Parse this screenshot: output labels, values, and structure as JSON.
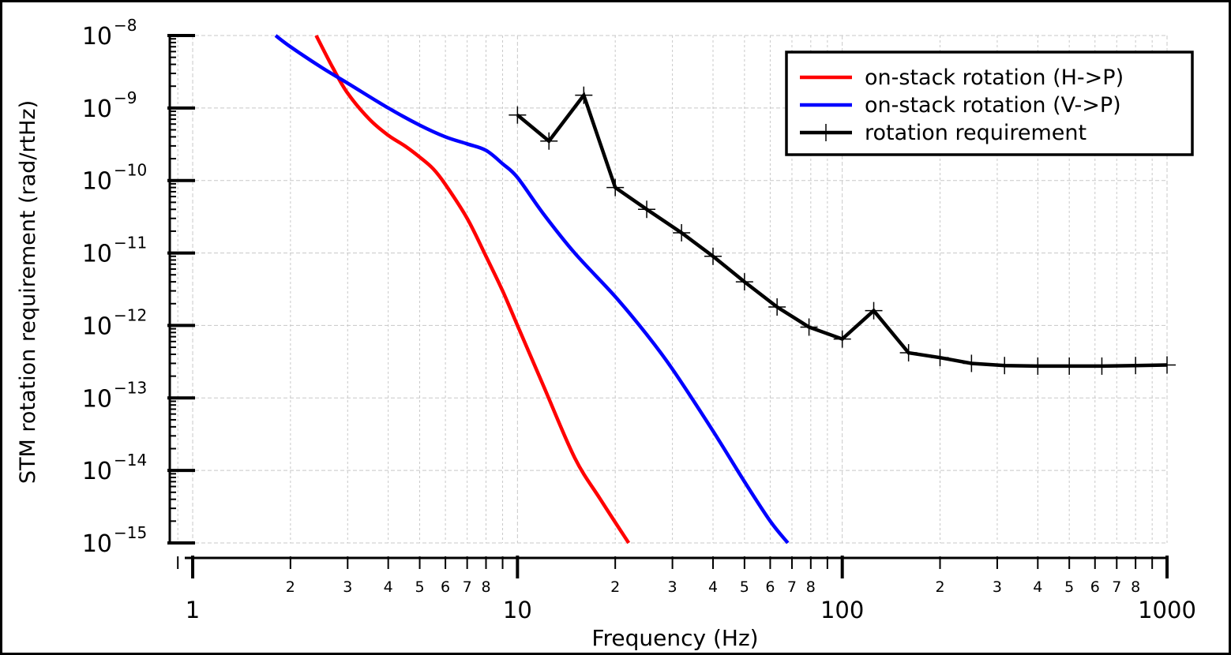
{
  "chart_data": {
    "type": "line",
    "title": "",
    "xlabel": "Frequency (Hz)",
    "ylabel": "STM rotation requirement (rad/rtHz)",
    "xscale": "log",
    "yscale": "log",
    "xlim": [
      0.85,
      1000
    ],
    "ylim": [
      1e-15,
      1e-08
    ],
    "grid": true,
    "legend_position": "top-right",
    "x_major_ticks": [
      {
        "value": 1,
        "label": "1"
      },
      {
        "value": 10,
        "label": "10"
      },
      {
        "value": 100,
        "label": "100"
      },
      {
        "value": 1000,
        "label": "1000"
      }
    ],
    "x_minor_tick_labels": [
      "2",
      "3",
      "4",
      "5",
      "6",
      "7",
      "8"
    ],
    "y_major_ticks": [
      {
        "value": 1e-08,
        "base": "10",
        "exp": "−8"
      },
      {
        "value": 1e-09,
        "base": "10",
        "exp": "−9"
      },
      {
        "value": 1e-10,
        "base": "10",
        "exp": "−10"
      },
      {
        "value": 1e-11,
        "base": "10",
        "exp": "−11"
      },
      {
        "value": 1e-12,
        "base": "10",
        "exp": "−12"
      },
      {
        "value": 1e-13,
        "base": "10",
        "exp": "−13"
      },
      {
        "value": 1e-14,
        "base": "10",
        "exp": "−14"
      },
      {
        "value": 1e-15,
        "base": "10",
        "exp": "−15"
      }
    ],
    "series": [
      {
        "name": "on-stack rotation (H->P)",
        "color": "#ff0000",
        "marker": "none",
        "points": [
          [
            2.4,
            1e-08
          ],
          [
            2.7,
            3.6e-09
          ],
          [
            3.0,
            1.6e-09
          ],
          [
            3.5,
            7e-10
          ],
          [
            4.0,
            4.2e-10
          ],
          [
            4.5,
            3e-10
          ],
          [
            5.0,
            2.1e-10
          ],
          [
            5.5,
            1.45e-10
          ],
          [
            6.0,
            8.8e-11
          ],
          [
            7.0,
            3e-11
          ],
          [
            8.0,
            9e-12
          ],
          [
            9.0,
            3e-12
          ],
          [
            10.0,
            1e-12
          ],
          [
            12.0,
            1.5e-13
          ],
          [
            15.0,
            1.5e-14
          ],
          [
            18.0,
            4e-15
          ],
          [
            22.0,
            1e-15
          ]
        ]
      },
      {
        "name": "on-stack rotation (V->P)",
        "color": "#0000ff",
        "marker": "none",
        "points": [
          [
            1.8,
            1e-08
          ],
          [
            2.0,
            7e-09
          ],
          [
            2.5,
            3.6e-09
          ],
          [
            3.0,
            2.2e-09
          ],
          [
            4.0,
            1e-09
          ],
          [
            5.0,
            5.8e-10
          ],
          [
            6.0,
            4e-10
          ],
          [
            7.0,
            3.2e-10
          ],
          [
            8.0,
            2.6e-10
          ],
          [
            9.0,
            1.7e-10
          ],
          [
            10.0,
            1.1e-10
          ],
          [
            12.0,
            3.5e-11
          ],
          [
            15.0,
            1e-11
          ],
          [
            20.0,
            2.5e-12
          ],
          [
            25.0,
            7.5e-13
          ],
          [
            30.0,
            2.5e-13
          ],
          [
            40.0,
            3.5e-14
          ],
          [
            50.0,
            7e-15
          ],
          [
            60.0,
            2e-15
          ],
          [
            68.0,
            1e-15
          ]
        ]
      },
      {
        "name": "rotation requirement",
        "color": "#000000",
        "marker": "plus",
        "points": [
          [
            10,
            8e-10
          ],
          [
            12.5,
            3.5e-10
          ],
          [
            16,
            1.5e-09
          ],
          [
            20,
            8e-11
          ],
          [
            25,
            4e-11
          ],
          [
            32,
            1.9e-11
          ],
          [
            40,
            9e-12
          ],
          [
            50,
            4e-12
          ],
          [
            63,
            1.8e-12
          ],
          [
            79,
            9.5e-13
          ],
          [
            100,
            6.5e-13
          ],
          [
            125,
            1.6e-12
          ],
          [
            160,
            4.2e-13
          ],
          [
            200,
            3.6e-13
          ],
          [
            250,
            3e-13
          ],
          [
            316,
            2.8e-13
          ],
          [
            400,
            2.75e-13
          ],
          [
            500,
            2.75e-13
          ],
          [
            630,
            2.75e-13
          ],
          [
            800,
            2.8e-13
          ],
          [
            1000,
            2.85e-13
          ]
        ]
      }
    ]
  }
}
